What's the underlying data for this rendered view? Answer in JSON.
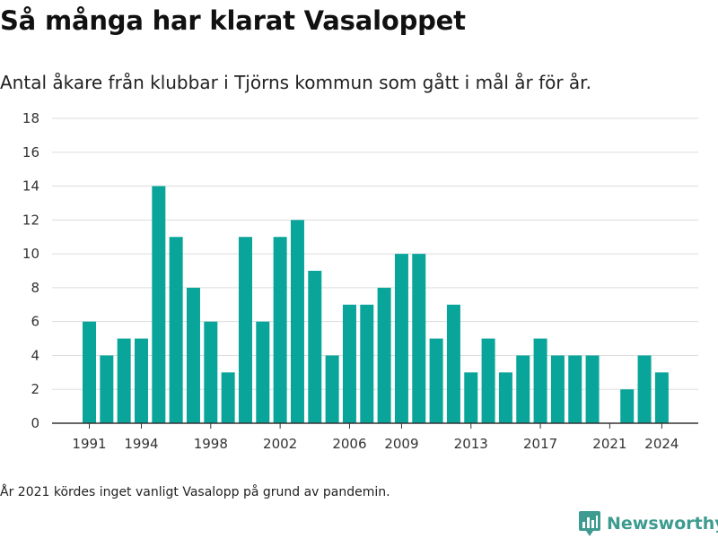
{
  "header": {
    "title": "Så många har klarat Vasaloppet",
    "subtitle": "Antal åkare från klubbar i Tjörns kommun som gått i mål år för år."
  },
  "footnote": "År 2021 kördes inget vanligt Vasalopp på grund av pandemin.",
  "brand": {
    "name": "Newsworthy",
    "icon": "bar-chart-logo-icon",
    "color": "#3d9b8f"
  },
  "colors": {
    "bar": "#0aa59a",
    "grid": "#dddddd",
    "axis": "#333333"
  },
  "chart_data": {
    "type": "bar",
    "x": [
      1991,
      1992,
      1993,
      1994,
      1995,
      1996,
      1997,
      1998,
      1999,
      2000,
      2001,
      2002,
      2003,
      2004,
      2005,
      2006,
      2007,
      2008,
      2009,
      2010,
      2011,
      2012,
      2013,
      2014,
      2015,
      2016,
      2017,
      2018,
      2019,
      2020,
      2021,
      2022,
      2023,
      2024
    ],
    "values": [
      6,
      4,
      5,
      5,
      14,
      11,
      8,
      6,
      3,
      11,
      6,
      11,
      12,
      9,
      4,
      7,
      7,
      8,
      10,
      10,
      5,
      7,
      3,
      5,
      3,
      4,
      5,
      4,
      4,
      4,
      0,
      2,
      4,
      3
    ],
    "xticks": [
      1991,
      1994,
      1998,
      2002,
      2006,
      2009,
      2013,
      2017,
      2021,
      2024
    ],
    "yticks": [
      0,
      2,
      4,
      6,
      8,
      10,
      12,
      14,
      16,
      18
    ],
    "ylim": [
      0,
      18
    ],
    "title": "Så många har klarat Vasaloppet",
    "subtitle": "Antal åkare från klubbar i Tjörns kommun som gått i mål år för år.",
    "xlabel": "",
    "ylabel": "",
    "grid": "horizontal",
    "legend": "none"
  }
}
